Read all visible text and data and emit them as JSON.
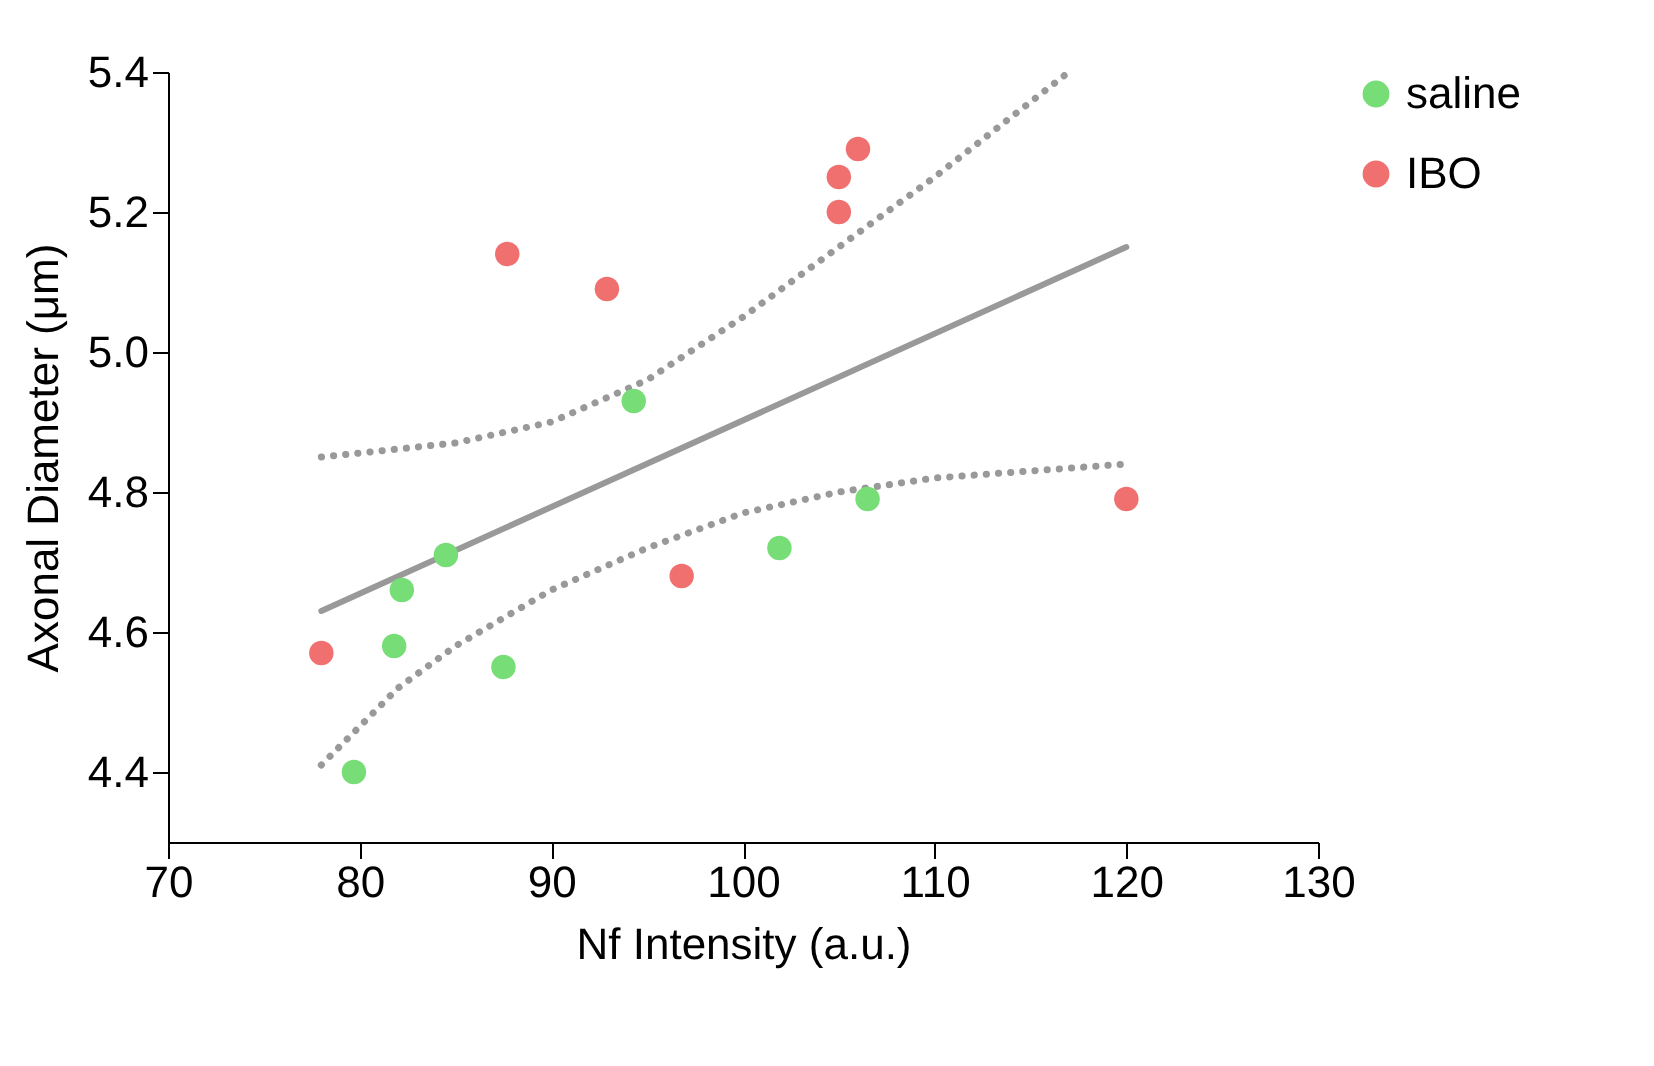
{
  "chart_data": {
    "type": "scatter",
    "xlabel": "Nf Intensity (a.u.)",
    "ylabel": "Axonal Diameter (μm)",
    "xlim": [
      70,
      130
    ],
    "xticks": [
      70,
      80,
      90,
      100,
      110,
      120,
      130
    ],
    "ylim": [
      4.3,
      5.4
    ],
    "yticks": [
      4.4,
      4.6,
      4.8,
      {
        "value": 5.0,
        "label": "5.0"
      },
      5.2,
      5.4
    ],
    "grid": false,
    "legend": "top right",
    "marker": "circle",
    "series": [
      {
        "name": "saline",
        "color": "#77dd77",
        "x": [
          79.7,
          81.8,
          82.2,
          84.5,
          87.5,
          94.3,
          101.9,
          106.5
        ],
        "values": [
          4.4,
          4.58,
          4.66,
          4.71,
          4.55,
          4.93,
          4.72,
          4.79
        ]
      },
      {
        "name": "IBO",
        "color": "#f07070",
        "x": [
          78.0,
          87.7,
          92.9,
          96.8,
          105.0,
          105.0,
          106.0,
          120.0
        ],
        "values": [
          4.57,
          5.14,
          5.09,
          4.68,
          5.25,
          5.2,
          5.29,
          4.79
        ]
      },
      {
        "type": "line",
        "color": "#999999",
        "line_style": "solid",
        "marker": "none",
        "x": [
          78,
          120
        ],
        "values": [
          4.63,
          5.15
        ]
      },
      {
        "type": "line",
        "color": "#999999",
        "line_style": "dotted",
        "marker": "none",
        "x": [
          78,
          85,
          90,
          95,
          100,
          105,
          110,
          117
        ],
        "values": [
          4.85,
          4.87,
          4.9,
          4.96,
          5.05,
          5.15,
          5.25,
          5.4
        ]
      },
      {
        "type": "line",
        "color": "#999999",
        "line_style": "dotted",
        "marker": "none",
        "x": [
          78,
          82,
          85,
          90,
          95,
          100,
          105,
          110,
          120
        ],
        "values": [
          4.41,
          4.52,
          4.58,
          4.66,
          4.72,
          4.77,
          4.8,
          4.82,
          4.84
        ]
      }
    ]
  }
}
